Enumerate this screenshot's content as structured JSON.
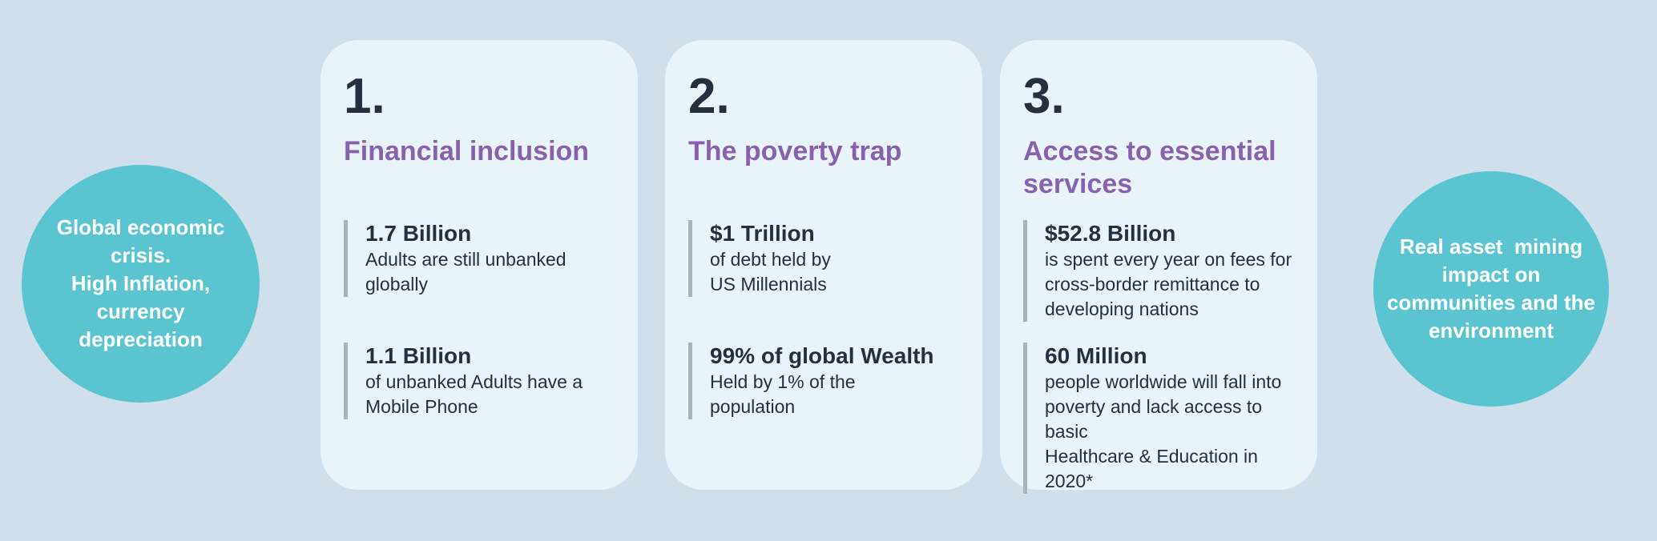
{
  "colors": {
    "page_bg": "#cfe0ec",
    "card_bg": "#e9f3fa",
    "circle_bg": "#5bc4d1",
    "accent_purple": "#8761ae",
    "text_dark": "#22313d",
    "bar_gray": "#a9b4ba",
    "circle_text": "#ffffff"
  },
  "left_circle": {
    "text": "Global economic\ncrisis.\nHigh Inflation,\ncurrency\ndepreciation"
  },
  "right_circle": {
    "text": "Real asset  mining\nimpact on\ncommunities and the\nenvironment"
  },
  "cards": [
    {
      "number": "1.",
      "title": "Financial inclusion",
      "stats": [
        {
          "value": "1.7 Billion",
          "description": "Adults are still unbanked\nglobally"
        },
        {
          "value": "1.1 Billion",
          "description": "of unbanked Adults have a\nMobile Phone"
        }
      ]
    },
    {
      "number": "2.",
      "title": "The poverty trap",
      "stats": [
        {
          "value": "$1 Trillion",
          "description": "of debt held by\nUS Millennials"
        },
        {
          "value": "99% of global Wealth",
          "description": "Held by 1% of the\npopulation"
        }
      ]
    },
    {
      "number": "3.",
      "title": "Access to essential\nservices",
      "stats": [
        {
          "value": "$52.8 Billion",
          "description": "is spent every year on fees for\ncross-border remittance to\ndeveloping nations"
        },
        {
          "value": "60 Million",
          "description": "people worldwide will fall into\npoverty and lack access to basic\nHealthcare & Education in 2020*"
        }
      ]
    }
  ]
}
